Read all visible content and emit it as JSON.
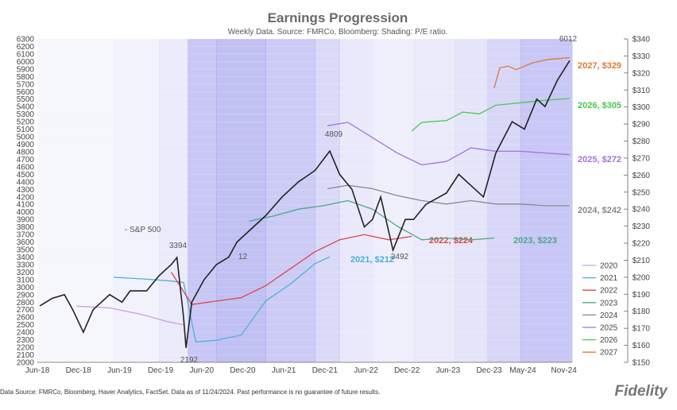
{
  "chart_data": {
    "type": "line",
    "title": "Earnings Progression",
    "subtitle": "Weekly Data.  Source: FMRCo, Bloomberg, Haver Analytics, FactSet. Data as of 11/24/2024. Past performance is no guarantee of future results.",
    "subtitle_short": "Weekly Data.  Source: FMRCo, Bloomberg: Shading: P/E ratio.",
    "x_ticks": [
      "Jun-18",
      "Dec-18",
      "Jun-19",
      "Dec-19",
      "Jun-20",
      "Dec-20",
      "Jun-21",
      "Dec-21",
      "Jun-22",
      "Dec-22",
      "Jun-23",
      "Dec-23",
      "May-24",
      "Nov-24"
    ],
    "y_left_ticks": [
      2000,
      2100,
      2200,
      2300,
      2400,
      2500,
      2600,
      2700,
      2800,
      2900,
      3000,
      3100,
      3200,
      3300,
      3400,
      3500,
      3600,
      3700,
      3800,
      3900,
      4000,
      4100,
      4200,
      4300,
      4400,
      4500,
      4600,
      4700,
      4800,
      4900,
      5000,
      5100,
      5200,
      5300,
      5400,
      5500,
      5600,
      5700,
      5800,
      5900,
      6000,
      6100,
      6200,
      6300
    ],
    "y_right_ticks": [
      "$150",
      "$160",
      "$170",
      "$180",
      "$190",
      "$200",
      "$210",
      "$220",
      "$230",
      "$240",
      "$250",
      "$260",
      "$270",
      "$280",
      "$290",
      "$300",
      "$310",
      "$320",
      "$330",
      "$340"
    ],
    "ylim_left": [
      2000,
      6300
    ],
    "ylim_right": [
      150,
      340
    ],
    "sp500": {
      "name": "S&P 500",
      "points": [
        [
          2018.45,
          2750
        ],
        [
          2018.6,
          2850
        ],
        [
          2018.75,
          2900
        ],
        [
          2018.85,
          2700
        ],
        [
          2018.98,
          2400
        ],
        [
          2019.1,
          2700
        ],
        [
          2019.3,
          2900
        ],
        [
          2019.45,
          2800
        ],
        [
          2019.55,
          2950
        ],
        [
          2019.75,
          2950
        ],
        [
          2019.9,
          3150
        ],
        [
          2020.05,
          3300
        ],
        [
          2020.12,
          3394
        ],
        [
          2020.2,
          2600
        ],
        [
          2020.23,
          2192
        ],
        [
          2020.3,
          2800
        ],
        [
          2020.45,
          3100
        ],
        [
          2020.6,
          3300
        ],
        [
          2020.75,
          3400
        ],
        [
          2020.85,
          3600
        ],
        [
          2021.0,
          3750
        ],
        [
          2021.2,
          3950
        ],
        [
          2021.4,
          4200
        ],
        [
          2021.6,
          4400
        ],
        [
          2021.8,
          4550
        ],
        [
          2021.98,
          4809
        ],
        [
          2022.1,
          4500
        ],
        [
          2022.25,
          4300
        ],
        [
          2022.4,
          3800
        ],
        [
          2022.5,
          3900
        ],
        [
          2022.6,
          4200
        ],
        [
          2022.75,
          3492
        ],
        [
          2022.9,
          3900
        ],
        [
          2023.0,
          3900
        ],
        [
          2023.15,
          4100
        ],
        [
          2023.4,
          4250
        ],
        [
          2023.55,
          4500
        ],
        [
          2023.75,
          4300
        ],
        [
          2023.85,
          4200
        ],
        [
          2024.0,
          4780
        ],
        [
          2024.2,
          5200
        ],
        [
          2024.35,
          5100
        ],
        [
          2024.5,
          5500
        ],
        [
          2024.6,
          5400
        ],
        [
          2024.75,
          5750
        ],
        [
          2024.9,
          6012
        ]
      ]
    },
    "series": [
      {
        "name": "2020",
        "final": "",
        "color": "#c9a0dc",
        "points": [
          [
            2018.9,
            183
          ],
          [
            2019.3,
            182
          ],
          [
            2019.7,
            178
          ],
          [
            2020.0,
            174
          ],
          [
            2020.2,
            172
          ]
        ]
      },
      {
        "name": "2021",
        "final": "2021, $212",
        "color": "#4ab0d8",
        "points": [
          [
            2019.35,
            200
          ],
          [
            2019.7,
            199
          ],
          [
            2020.0,
            198
          ],
          [
            2020.2,
            197
          ],
          [
            2020.35,
            162
          ],
          [
            2020.6,
            163
          ],
          [
            2020.9,
            166
          ],
          [
            2021.2,
            186
          ],
          [
            2021.5,
            196
          ],
          [
            2021.8,
            208
          ],
          [
            2021.98,
            212
          ]
        ]
      },
      {
        "name": "2022",
        "final": "2022, $224",
        "color": "#d84848",
        "points": [
          [
            2020.05,
            203
          ],
          [
            2020.3,
            184
          ],
          [
            2020.6,
            186
          ],
          [
            2020.9,
            188
          ],
          [
            2021.2,
            195
          ],
          [
            2021.5,
            205
          ],
          [
            2021.8,
            215
          ],
          [
            2022.1,
            222
          ],
          [
            2022.4,
            225
          ],
          [
            2022.7,
            222
          ],
          [
            2022.98,
            224
          ]
        ]
      },
      {
        "name": "2023",
        "final": "2023, $223",
        "color": "#4aa884",
        "points": [
          [
            2021.0,
            233
          ],
          [
            2021.3,
            236
          ],
          [
            2021.6,
            240
          ],
          [
            2021.9,
            242
          ],
          [
            2022.2,
            245
          ],
          [
            2022.5,
            240
          ],
          [
            2022.8,
            230
          ],
          [
            2023.1,
            222
          ],
          [
            2023.4,
            223
          ],
          [
            2023.7,
            222
          ],
          [
            2023.98,
            223
          ]
        ]
      },
      {
        "name": "2024",
        "final": "2024, $242",
        "color": "#888888",
        "points": [
          [
            2021.95,
            252
          ],
          [
            2022.2,
            254
          ],
          [
            2022.5,
            252
          ],
          [
            2022.8,
            248
          ],
          [
            2023.1,
            245
          ],
          [
            2023.4,
            243
          ],
          [
            2023.7,
            245
          ],
          [
            2024.0,
            243
          ],
          [
            2024.3,
            243
          ],
          [
            2024.6,
            242
          ],
          [
            2024.9,
            242
          ]
        ]
      },
      {
        "name": "2025",
        "final": "2025, $272",
        "color": "#a074d8",
        "points": [
          [
            2021.95,
            289
          ],
          [
            2022.2,
            291
          ],
          [
            2022.5,
            282
          ],
          [
            2022.8,
            273
          ],
          [
            2023.1,
            266
          ],
          [
            2023.4,
            268
          ],
          [
            2023.7,
            276
          ],
          [
            2024.0,
            274
          ],
          [
            2024.3,
            274
          ],
          [
            2024.6,
            273
          ],
          [
            2024.9,
            272
          ]
        ]
      },
      {
        "name": "2026",
        "final": "2026, $305",
        "color": "#4cc850",
        "points": [
          [
            2022.98,
            286
          ],
          [
            2023.1,
            291
          ],
          [
            2023.4,
            292
          ],
          [
            2023.6,
            297
          ],
          [
            2023.8,
            296
          ],
          [
            2024.0,
            301
          ],
          [
            2024.2,
            302
          ],
          [
            2024.4,
            303
          ],
          [
            2024.6,
            304
          ],
          [
            2024.9,
            305
          ]
        ]
      },
      {
        "name": "2027",
        "final": "2027, $329",
        "color": "#e07838",
        "points": [
          [
            2023.98,
            311
          ],
          [
            2024.05,
            323
          ],
          [
            2024.15,
            324
          ],
          [
            2024.25,
            322
          ],
          [
            2024.45,
            326
          ],
          [
            2024.65,
            328
          ],
          [
            2024.9,
            329
          ]
        ]
      }
    ],
    "annotations": [
      "3394",
      "2192",
      "4809",
      "3492",
      "6012",
      "- S&P 500",
      "12"
    ],
    "legend": [
      "2020",
      "2021",
      "2022",
      "2023",
      "2024",
      "2025",
      "2026",
      "2027"
    ]
  },
  "footer": "Data Source: FMRCo, Bloomberg, Haver Analytics, FactSet. Data as of 11/24/2024. Past performance is no guarantee of future results.",
  "logo": "Fidelity",
  "colors": {
    "shade_dark": "#7a78e6",
    "shade_light": "#e6e6fa",
    "axis": "#444444"
  }
}
